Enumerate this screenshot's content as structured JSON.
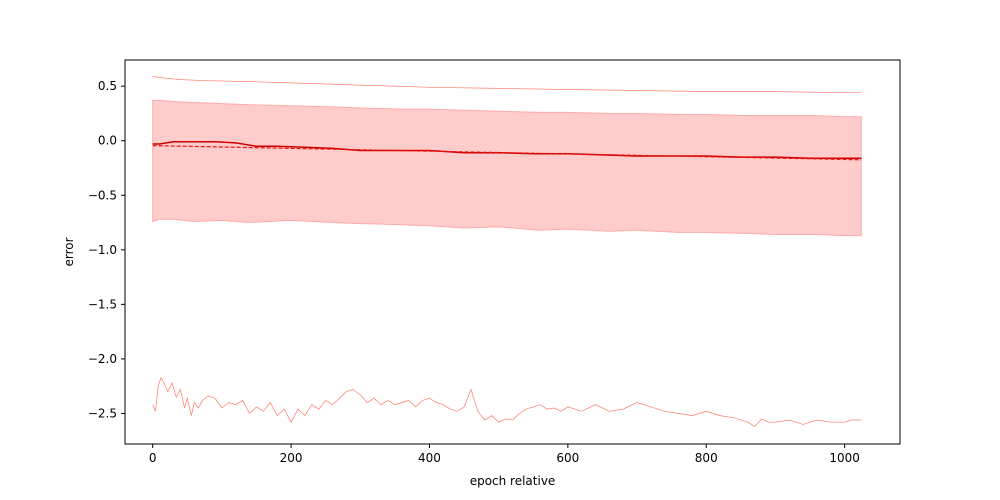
{
  "chart_data": {
    "type": "line",
    "title": "",
    "xlabel": "epoch relative",
    "ylabel": "error",
    "xlim": [
      -40,
      1080
    ],
    "ylim": [
      -2.78,
      0.74
    ],
    "xticks": [
      0,
      200,
      400,
      600,
      800,
      1000
    ],
    "xtick_labels": [
      "0",
      "200",
      "400",
      "600",
      "800",
      "1000"
    ],
    "yticks": [
      0.5,
      0.0,
      -0.5,
      -1.0,
      -1.5,
      -2.0,
      -2.5
    ],
    "ytick_labels": [
      "0.5",
      "0.0",
      "−0.5",
      "−1.0",
      "−1.5",
      "−2.0",
      "−2.5"
    ],
    "grid": false,
    "colors": {
      "mean": "#cc0000",
      "trend": "#ee1111",
      "band_fill": "#ffcccc",
      "band_edge": "#ffaaaa",
      "extreme": "#ff7b6b",
      "axis": "#000000"
    },
    "band": {
      "x": [
        0,
        10,
        30,
        60,
        100,
        140,
        200,
        260,
        300,
        360,
        400,
        450,
        500,
        560,
        600,
        660,
        700,
        760,
        800,
        860,
        900,
        960,
        1000,
        1024
      ],
      "upper": [
        0.37,
        0.37,
        0.36,
        0.35,
        0.34,
        0.33,
        0.32,
        0.31,
        0.3,
        0.29,
        0.29,
        0.28,
        0.27,
        0.26,
        0.26,
        0.25,
        0.25,
        0.24,
        0.24,
        0.23,
        0.23,
        0.23,
        0.22,
        0.22
      ],
      "lower": [
        -0.74,
        -0.72,
        -0.72,
        -0.74,
        -0.73,
        -0.75,
        -0.73,
        -0.75,
        -0.76,
        -0.77,
        -0.78,
        -0.8,
        -0.79,
        -0.82,
        -0.81,
        -0.83,
        -0.82,
        -0.84,
        -0.84,
        -0.85,
        -0.86,
        -0.86,
        -0.87,
        -0.87
      ]
    },
    "series": [
      {
        "role": "mean",
        "x": [
          0,
          10,
          30,
          60,
          90,
          120,
          150,
          180,
          220,
          260,
          300,
          350,
          400,
          450,
          500,
          550,
          600,
          650,
          700,
          750,
          800,
          850,
          900,
          950,
          1000,
          1024
        ],
        "values": [
          -0.03,
          -0.03,
          -0.01,
          -0.01,
          -0.01,
          -0.02,
          -0.05,
          -0.05,
          -0.06,
          -0.07,
          -0.09,
          -0.09,
          -0.09,
          -0.11,
          -0.11,
          -0.12,
          -0.12,
          -0.13,
          -0.14,
          -0.14,
          -0.14,
          -0.15,
          -0.15,
          -0.16,
          -0.16,
          -0.16
        ]
      },
      {
        "role": "trend",
        "x": [
          0,
          1024
        ],
        "values": [
          -0.045,
          -0.175
        ]
      },
      {
        "role": "max",
        "x": [
          0,
          10,
          40,
          80,
          150,
          200,
          300,
          400,
          500,
          600,
          700,
          800,
          900,
          1000,
          1024
        ],
        "values": [
          0.59,
          0.58,
          0.56,
          0.55,
          0.54,
          0.53,
          0.51,
          0.49,
          0.48,
          0.47,
          0.46,
          0.45,
          0.45,
          0.44,
          0.44
        ]
      },
      {
        "role": "min",
        "x": [
          0,
          4,
          8,
          12,
          16,
          22,
          28,
          34,
          40,
          46,
          50,
          56,
          60,
          66,
          72,
          80,
          90,
          100,
          110,
          120,
          130,
          140,
          150,
          160,
          170,
          180,
          190,
          200,
          210,
          220,
          230,
          240,
          250,
          260,
          270,
          280,
          290,
          300,
          310,
          320,
          330,
          340,
          350,
          360,
          370,
          380,
          390,
          400,
          410,
          420,
          430,
          440,
          450,
          455,
          460,
          465,
          470,
          480,
          490,
          500,
          510,
          520,
          530,
          540,
          550,
          560,
          570,
          580,
          590,
          600,
          620,
          640,
          660,
          680,
          700,
          720,
          740,
          760,
          780,
          800,
          820,
          840,
          860,
          870,
          880,
          890,
          900,
          920,
          940,
          960,
          980,
          1000,
          1010,
          1024
        ],
        "values": [
          -2.42,
          -2.48,
          -2.25,
          -2.17,
          -2.22,
          -2.3,
          -2.22,
          -2.35,
          -2.28,
          -2.45,
          -2.36,
          -2.52,
          -2.4,
          -2.45,
          -2.38,
          -2.34,
          -2.36,
          -2.45,
          -2.4,
          -2.42,
          -2.38,
          -2.5,
          -2.44,
          -2.48,
          -2.4,
          -2.52,
          -2.46,
          -2.58,
          -2.46,
          -2.52,
          -2.42,
          -2.46,
          -2.38,
          -2.42,
          -2.36,
          -2.3,
          -2.28,
          -2.33,
          -2.4,
          -2.36,
          -2.42,
          -2.38,
          -2.42,
          -2.4,
          -2.38,
          -2.44,
          -2.38,
          -2.36,
          -2.4,
          -2.42,
          -2.46,
          -2.48,
          -2.44,
          -2.36,
          -2.28,
          -2.38,
          -2.48,
          -2.56,
          -2.52,
          -2.58,
          -2.55,
          -2.56,
          -2.5,
          -2.46,
          -2.44,
          -2.42,
          -2.46,
          -2.45,
          -2.48,
          -2.44,
          -2.48,
          -2.42,
          -2.48,
          -2.46,
          -2.4,
          -2.44,
          -2.48,
          -2.5,
          -2.52,
          -2.48,
          -2.52,
          -2.54,
          -2.58,
          -2.62,
          -2.55,
          -2.58,
          -2.58,
          -2.56,
          -2.6,
          -2.56,
          -2.58,
          -2.58,
          -2.56,
          -2.56
        ]
      }
    ]
  }
}
